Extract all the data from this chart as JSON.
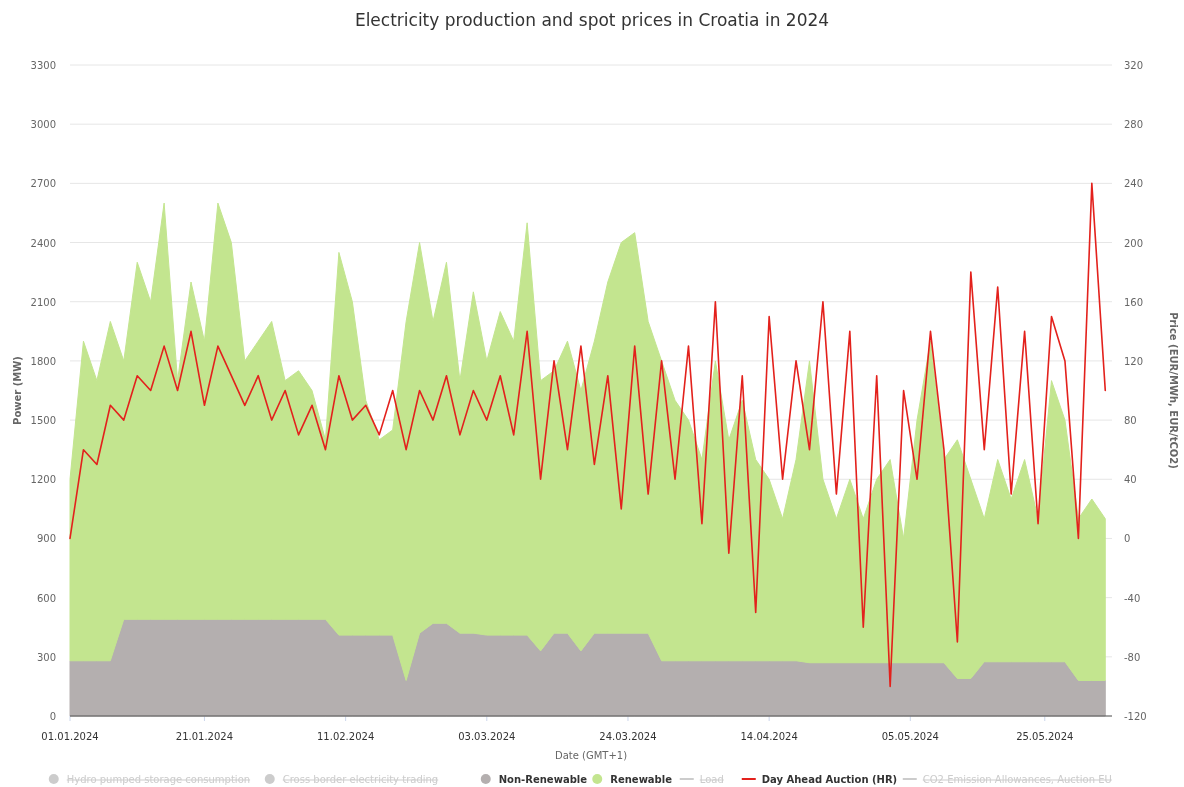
{
  "chart_data": {
    "type": "area",
    "stacked": true,
    "title": "Electricity production and spot prices in Croatia in 2024",
    "xlabel": "Date (GMT+1)",
    "ylabel": "Power (MW)",
    "y2label": "Price (EUR/MWh, EUR/tCO2)",
    "x": [
      "2024-01-01",
      "2024-01-03",
      "2024-01-05",
      "2024-01-07",
      "2024-01-09",
      "2024-01-11",
      "2024-01-13",
      "2024-01-15",
      "2024-01-17",
      "2024-01-19",
      "2024-01-21",
      "2024-01-23",
      "2024-01-25",
      "2024-01-27",
      "2024-01-29",
      "2024-01-31",
      "2024-02-02",
      "2024-02-04",
      "2024-02-06",
      "2024-02-08",
      "2024-02-10",
      "2024-02-12",
      "2024-02-14",
      "2024-02-16",
      "2024-02-18",
      "2024-02-20",
      "2024-02-22",
      "2024-02-24",
      "2024-02-26",
      "2024-02-28",
      "2024-03-01",
      "2024-03-03",
      "2024-03-05",
      "2024-03-07",
      "2024-03-09",
      "2024-03-11",
      "2024-03-13",
      "2024-03-15",
      "2024-03-17",
      "2024-03-19",
      "2024-03-21",
      "2024-03-23",
      "2024-03-25",
      "2024-03-27",
      "2024-03-29",
      "2024-03-31",
      "2024-04-02",
      "2024-04-04",
      "2024-04-06",
      "2024-04-08",
      "2024-04-10",
      "2024-04-12",
      "2024-04-14",
      "2024-04-16",
      "2024-04-18",
      "2024-04-20",
      "2024-04-22",
      "2024-04-24",
      "2024-04-26",
      "2024-04-28",
      "2024-04-30",
      "2024-05-02",
      "2024-05-04",
      "2024-05-06",
      "2024-05-08",
      "2024-05-10",
      "2024-05-12",
      "2024-05-14",
      "2024-05-16",
      "2024-05-18",
      "2024-05-20",
      "2024-05-22",
      "2024-05-24",
      "2024-05-26",
      "2024-05-28",
      "2024-05-30",
      "2024-06-01",
      "2024-06-03"
    ],
    "xlim": [
      "2024-01-01",
      "2024-06-04"
    ],
    "xticks": [
      {
        "value": "2024-01-01",
        "label": "01.01.2024"
      },
      {
        "value": "2024-01-21",
        "label": "21.01.2024"
      },
      {
        "value": "2024-02-11",
        "label": "11.02.2024"
      },
      {
        "value": "2024-03-03",
        "label": "03.03.2024"
      },
      {
        "value": "2024-03-24",
        "label": "24.03.2024"
      },
      {
        "value": "2024-04-14",
        "label": "14.04.2024"
      },
      {
        "value": "2024-05-05",
        "label": "05.05.2024"
      },
      {
        "value": "2024-05-25",
        "label": "25.05.2024"
      }
    ],
    "ylim": [
      0,
      3300
    ],
    "yticks": [
      0,
      300,
      600,
      900,
      1200,
      1500,
      1800,
      2100,
      2400,
      2700,
      3000,
      3300
    ],
    "y2lim": [
      -120,
      320
    ],
    "y2ticks": [
      -120,
      -80,
      -40,
      0,
      40,
      80,
      120,
      160,
      200,
      240,
      280,
      320
    ],
    "grid": "y",
    "legend": "bottom",
    "series": [
      {
        "name": "Hydro pumped storage consumption",
        "color": "#cccccc",
        "values": [
          null,
          null,
          null,
          null,
          null,
          null,
          null,
          null,
          null,
          null,
          null,
          null,
          null,
          null,
          null,
          null,
          null,
          null,
          null,
          null,
          null,
          null,
          null,
          null,
          null,
          null,
          null,
          null,
          null,
          null,
          null,
          null,
          null,
          null,
          null,
          null,
          null,
          null,
          null,
          null,
          null,
          null,
          null,
          null,
          null,
          null,
          null,
          null,
          null,
          null,
          null,
          null,
          null,
          null,
          null,
          null,
          null,
          null,
          null,
          null,
          null,
          null,
          null,
          null,
          null,
          null,
          null,
          null,
          null,
          null,
          null,
          null,
          null,
          null,
          null,
          null,
          null,
          null
        ]
      },
      {
        "name": "Cross border electricity trading",
        "color": "#cccccc",
        "values": [
          null,
          null,
          null,
          null,
          null,
          null,
          null,
          null,
          null,
          null,
          null,
          null,
          null,
          null,
          null,
          null,
          null,
          null,
          null,
          null,
          null,
          null,
          null,
          null,
          null,
          null,
          null,
          null,
          null,
          null,
          null,
          null,
          null,
          null,
          null,
          null,
          null,
          null,
          null,
          null,
          null,
          null,
          null,
          null,
          null,
          null,
          null,
          null,
          null,
          null,
          null,
          null,
          null,
          null,
          null,
          null,
          null,
          null,
          null,
          null,
          null,
          null,
          null,
          null,
          null,
          null,
          null,
          null,
          null,
          null,
          null,
          null,
          null,
          null,
          null,
          null,
          null,
          null
        ]
      },
      {
        "name": "Non-Renewable",
        "color": "#b4afaf",
        "values": [
          280,
          280,
          280,
          280,
          490,
          490,
          490,
          490,
          490,
          490,
          490,
          490,
          490,
          490,
          490,
          490,
          490,
          490,
          490,
          490,
          410,
          410,
          410,
          410,
          410,
          180,
          420,
          470,
          470,
          420,
          420,
          410,
          410,
          410,
          410,
          330,
          420,
          420,
          330,
          420,
          420,
          420,
          420,
          420,
          280,
          280,
          280,
          280,
          280,
          280,
          280,
          280,
          280,
          280,
          280,
          270,
          270,
          270,
          270,
          270,
          270,
          270,
          270,
          270,
          270,
          270,
          190,
          190,
          275,
          275,
          275,
          275,
          275,
          275,
          275,
          180,
          180,
          180
        ]
      },
      {
        "name": "Renewable",
        "color": "#c3e58f",
        "values": [
          920,
          1620,
          1420,
          1720,
          1310,
          1810,
          1610,
          2110,
          1210,
          1710,
          1410,
          2110,
          1910,
          1310,
          1410,
          1510,
          1210,
          1260,
          1160,
          910,
          1940,
          1690,
          1190,
          990,
          1040,
          1820,
          1980,
          1530,
          1830,
          1280,
          1730,
          1390,
          1640,
          1490,
          2090,
          1370,
          1330,
          1480,
          1320,
          1480,
          1780,
          1980,
          2030,
          1580,
          1520,
          1320,
          1220,
          1020,
          1520,
          1120,
          1320,
          1020,
          920,
          720,
          1020,
          1530,
          930,
          730,
          930,
          730,
          930,
          1030,
          630,
          1230,
          1630,
          1030,
          1210,
          1010,
          725,
          1025,
          825,
          1025,
          725,
          1425,
          1225,
          820,
          920,
          820
        ]
      },
      {
        "name": "Load",
        "type": "line",
        "color": "#cccccc",
        "values": [
          null,
          null,
          null,
          null,
          null,
          null,
          null,
          null,
          null,
          null,
          null,
          null,
          null,
          null,
          null,
          null,
          null,
          null,
          null,
          null,
          null,
          null,
          null,
          null,
          null,
          null,
          null,
          null,
          null,
          null,
          null,
          null,
          null,
          null,
          null,
          null,
          null,
          null,
          null,
          null,
          null,
          null,
          null,
          null,
          null,
          null,
          null,
          null,
          null,
          null,
          null,
          null,
          null,
          null,
          null,
          null,
          null,
          null,
          null,
          null,
          null,
          null,
          null,
          null,
          null,
          null,
          null,
          null,
          null,
          null,
          null,
          null,
          null,
          null,
          null,
          null,
          null,
          null
        ]
      },
      {
        "name": "Day Ahead Auction (HR)",
        "type": "line",
        "axis": "y2",
        "color": "#e3211c",
        "values": [
          0,
          60,
          50,
          90,
          80,
          110,
          100,
          130,
          100,
          140,
          90,
          130,
          110,
          90,
          110,
          80,
          100,
          70,
          90,
          60,
          110,
          80,
          90,
          70,
          100,
          60,
          100,
          80,
          110,
          70,
          100,
          80,
          110,
          70,
          140,
          40,
          120,
          60,
          130,
          50,
          110,
          20,
          130,
          30,
          120,
          40,
          130,
          10,
          160,
          -10,
          110,
          -50,
          150,
          40,
          120,
          60,
          160,
          30,
          140,
          -60,
          110,
          -100,
          100,
          40,
          140,
          60,
          -70,
          180,
          60,
          170,
          30,
          140,
          10,
          150,
          120,
          0,
          240,
          100
        ]
      },
      {
        "name": "CO2 Emission Allowances, Auction EU",
        "type": "line",
        "axis": "y2",
        "color": "#cccccc",
        "values": [
          null,
          null,
          null,
          null,
          null,
          null,
          null,
          null,
          null,
          null,
          null,
          null,
          null,
          null,
          null,
          null,
          null,
          null,
          null,
          null,
          null,
          null,
          null,
          null,
          null,
          null,
          null,
          null,
          null,
          null,
          null,
          null,
          null,
          null,
          null,
          null,
          null,
          null,
          null,
          null,
          null,
          null,
          null,
          null,
          null,
          null,
          null,
          null,
          null,
          null,
          null,
          null,
          null,
          null,
          null,
          null,
          null,
          null,
          null,
          null,
          null,
          null,
          null,
          null,
          null,
          null,
          null,
          null,
          null,
          null,
          null,
          null,
          null,
          null,
          null,
          null,
          null,
          null
        ]
      }
    ]
  }
}
